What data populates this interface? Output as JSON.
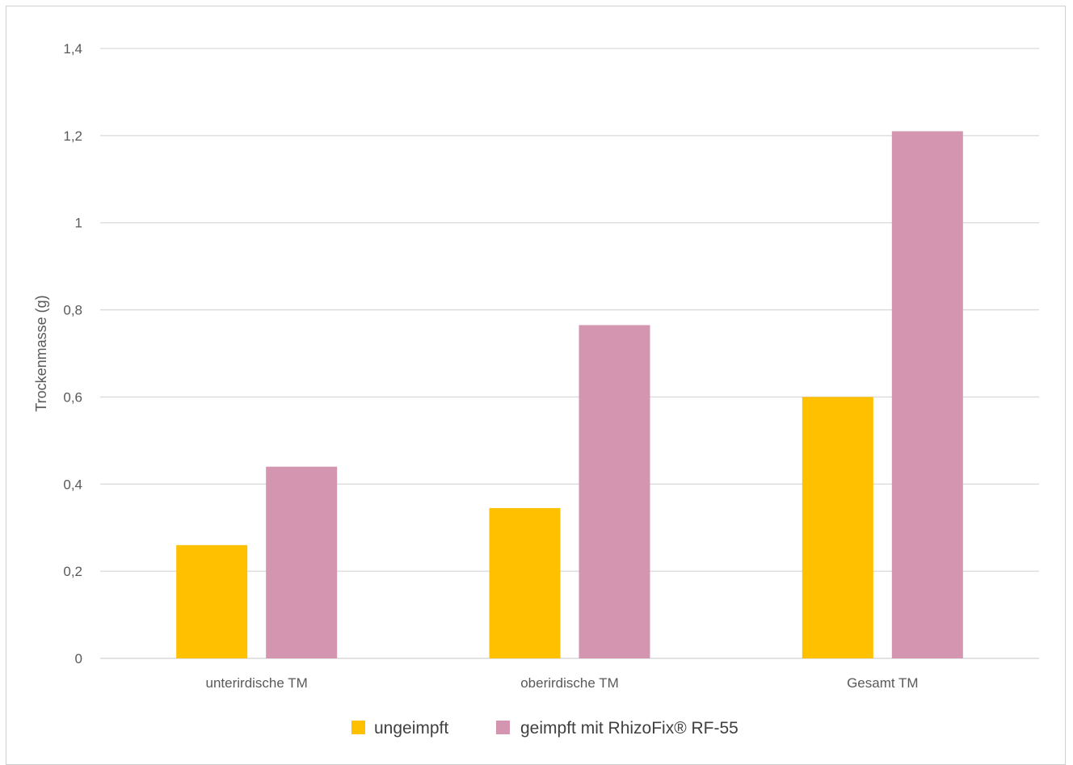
{
  "chart_data": {
    "type": "bar",
    "categories": [
      "unterirdische TM",
      "oberirdische TM",
      "Gesamt TM"
    ],
    "series": [
      {
        "name": "ungeimpft",
        "values": [
          0.26,
          0.345,
          0.6
        ],
        "color": "#FFC000"
      },
      {
        "name": "geimpft mit RhizoFix® RF-55",
        "values": [
          0.44,
          0.765,
          1.21
        ],
        "color": "#D495B1"
      }
    ],
    "title": "",
    "xlabel": "",
    "ylabel": "Trockenmasse (g)",
    "ylim": [
      0,
      1.4
    ],
    "yticks": [
      "0",
      "0,2",
      "0,4",
      "0,6",
      "0,8",
      "1",
      "1,2",
      "1,4"
    ],
    "grid": true,
    "legend_position": "bottom"
  }
}
